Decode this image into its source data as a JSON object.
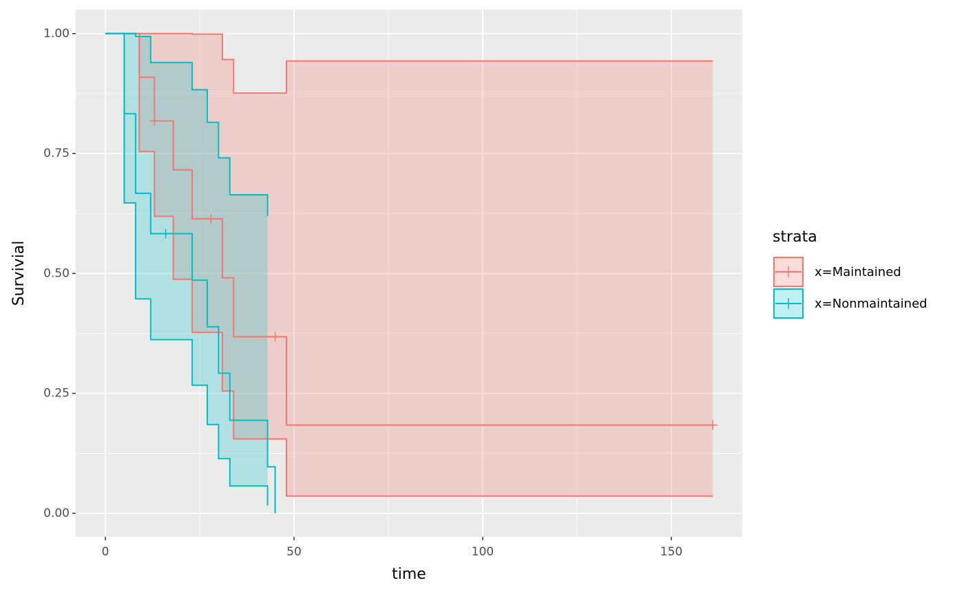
{
  "chart_data": {
    "type": "survival",
    "xlabel": "time",
    "ylabel": "Survivial",
    "xlim": [
      -7.85,
      168.8
    ],
    "xticks": [
      0,
      50,
      100,
      150
    ],
    "ylim": [
      -0.049,
      1.05
    ],
    "yticks": [
      {
        "value": 0,
        "label": "0.00"
      },
      {
        "value": 0.25,
        "label": "0.25"
      },
      {
        "value": 0.5,
        "label": "0.50"
      },
      {
        "value": 0.75,
        "label": "0.75"
      },
      {
        "value": 1,
        "label": "1.00"
      }
    ],
    "grid": true,
    "legend_title": "strata",
    "legend": "right",
    "series": [
      {
        "name": "x=Maintained",
        "color": "#F8766D",
        "time": [
          0,
          9,
          13,
          18,
          23,
          31,
          34,
          48,
          161
        ],
        "values": [
          1,
          0.909,
          0.818,
          0.716,
          0.614,
          0.491,
          0.368,
          0.184,
          0.184
        ],
        "upper": [
          1,
          1,
          1,
          1,
          0.999,
          0.946,
          0.876,
          0.943,
          0.943
        ],
        "lower": [
          1,
          0.754,
          0.619,
          0.488,
          0.377,
          0.255,
          0.155,
          0.036,
          0.036
        ],
        "censored_time": [
          13,
          28,
          45,
          161
        ],
        "censored_values": [
          0.818,
          0.614,
          0.368,
          0.184
        ]
      },
      {
        "name": "x=Nonmaintained",
        "color": "#00BFC4",
        "time": [
          0,
          5,
          8,
          12,
          23,
          27,
          30,
          33,
          43,
          45
        ],
        "values": [
          1,
          0.833,
          0.667,
          0.583,
          0.486,
          0.389,
          0.292,
          0.194,
          0.097,
          0
        ],
        "upper": [
          1,
          1,
          0.994,
          0.94,
          0.883,
          0.815,
          0.741,
          0.664,
          0.62,
          null
        ],
        "lower": [
          1,
          0.647,
          0.447,
          0.362,
          0.267,
          0.185,
          0.114,
          0.057,
          0.016,
          null
        ],
        "censored_time": [
          16
        ],
        "censored_values": [
          0.583
        ]
      }
    ]
  }
}
